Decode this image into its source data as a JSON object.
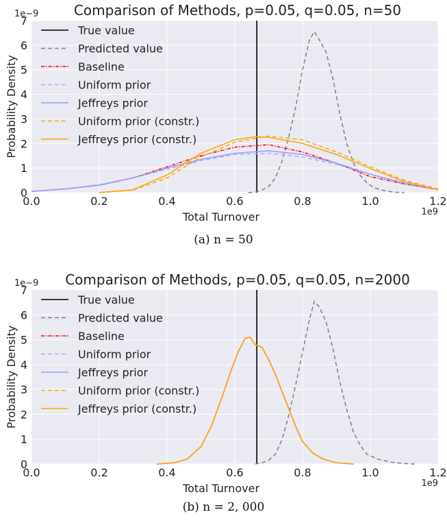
{
  "chart_data": [
    {
      "type": "line",
      "title": "Comparison of Methods, p=0.05, q=0.05, n=50",
      "xlabel": "Total Turnover",
      "ylabel": "Probability Density",
      "x_scale_label": "1e9",
      "y_scale_label": "1e−9",
      "xlim": [
        0.0,
        1.2
      ],
      "ylim": [
        0,
        7
      ],
      "xticks": [
        "0.0",
        "0.2",
        "0.4",
        "0.6",
        "0.8",
        "1.0",
        "1.2"
      ],
      "yticks": [
        "0",
        "1",
        "2",
        "3",
        "4",
        "5",
        "6",
        "7"
      ],
      "grid": true,
      "background": "#eaeaf2",
      "legend_position": "top-left",
      "caption": "(a) n = 50",
      "true_value": 0.665,
      "series": [
        {
          "name": "True value",
          "style": "solid",
          "color": "#000000",
          "vertical_at": 0.665,
          "points": []
        },
        {
          "name": "Predicted value",
          "style": "dashed",
          "color": "#808080",
          "points": [
            [
              0.64,
              0.0
            ],
            [
              0.66,
              0.02
            ],
            [
              0.68,
              0.1
            ],
            [
              0.7,
              0.25
            ],
            [
              0.72,
              0.6
            ],
            [
              0.74,
              1.3
            ],
            [
              0.76,
              2.3
            ],
            [
              0.78,
              3.5
            ],
            [
              0.8,
              5.0
            ],
            [
              0.82,
              6.2
            ],
            [
              0.835,
              6.55
            ],
            [
              0.85,
              6.2
            ],
            [
              0.87,
              5.7
            ],
            [
              0.89,
              4.6
            ],
            [
              0.91,
              3.2
            ],
            [
              0.93,
              2.0
            ],
            [
              0.95,
              1.2
            ],
            [
              0.97,
              0.7
            ],
            [
              0.99,
              0.4
            ],
            [
              1.01,
              0.2
            ],
            [
              1.04,
              0.08
            ],
            [
              1.07,
              0.02
            ],
            [
              1.1,
              0.0
            ]
          ]
        },
        {
          "name": "Baseline",
          "style": "dashdot",
          "color": "#ff0000",
          "points": [
            [
              0.0,
              0.05
            ],
            [
              0.1,
              0.15
            ],
            [
              0.2,
              0.3
            ],
            [
              0.3,
              0.6
            ],
            [
              0.4,
              1.05
            ],
            [
              0.5,
              1.5
            ],
            [
              0.6,
              1.85
            ],
            [
              0.7,
              1.95
            ],
            [
              0.8,
              1.65
            ],
            [
              0.9,
              1.2
            ],
            [
              1.0,
              0.65
            ],
            [
              1.1,
              0.35
            ],
            [
              1.2,
              0.12
            ]
          ]
        },
        {
          "name": "Uniform prior",
          "style": "dashed",
          "color": "#aaaaff",
          "points": [
            [
              0.0,
              0.05
            ],
            [
              0.1,
              0.15
            ],
            [
              0.2,
              0.32
            ],
            [
              0.3,
              0.6
            ],
            [
              0.4,
              0.95
            ],
            [
              0.5,
              1.3
            ],
            [
              0.6,
              1.55
            ],
            [
              0.7,
              1.6
            ],
            [
              0.8,
              1.45
            ],
            [
              0.9,
              1.15
            ],
            [
              1.0,
              0.75
            ],
            [
              1.1,
              0.4
            ],
            [
              1.2,
              0.15
            ]
          ]
        },
        {
          "name": "Jeffreys prior",
          "style": "solid",
          "color": "#9999ff",
          "points": [
            [
              0.0,
              0.05
            ],
            [
              0.1,
              0.15
            ],
            [
              0.2,
              0.3
            ],
            [
              0.3,
              0.6
            ],
            [
              0.4,
              1.0
            ],
            [
              0.5,
              1.35
            ],
            [
              0.6,
              1.6
            ],
            [
              0.7,
              1.7
            ],
            [
              0.8,
              1.55
            ],
            [
              0.9,
              1.2
            ],
            [
              1.0,
              0.75
            ],
            [
              1.1,
              0.38
            ],
            [
              1.2,
              0.12
            ]
          ]
        },
        {
          "name": "Uniform prior (constr.)",
          "style": "dashed",
          "color": "#ffa500",
          "points": [
            [
              0.2,
              0.0
            ],
            [
              0.3,
              0.1
            ],
            [
              0.4,
              0.6
            ],
            [
              0.5,
              1.45
            ],
            [
              0.6,
              2.05
            ],
            [
              0.7,
              2.3
            ],
            [
              0.8,
              2.15
            ],
            [
              0.9,
              1.65
            ],
            [
              1.0,
              1.05
            ],
            [
              1.1,
              0.5
            ],
            [
              1.2,
              0.15
            ]
          ]
        },
        {
          "name": "Jeffreys prior (constr.)",
          "style": "solid",
          "color": "#ffa500",
          "points": [
            [
              0.2,
              0.0
            ],
            [
              0.3,
              0.12
            ],
            [
              0.4,
              0.72
            ],
            [
              0.5,
              1.6
            ],
            [
              0.6,
              2.15
            ],
            [
              0.66,
              2.27
            ],
            [
              0.7,
              2.25
            ],
            [
              0.8,
              2.0
            ],
            [
              0.9,
              1.55
            ],
            [
              1.0,
              0.98
            ],
            [
              1.1,
              0.45
            ],
            [
              1.2,
              0.12
            ]
          ]
        }
      ]
    },
    {
      "type": "line",
      "title": "Comparison of Methods, p=0.05, q=0.05, n=2000",
      "xlabel": "Total Turnover",
      "ylabel": "Probability Density",
      "x_scale_label": "1e9",
      "y_scale_label": "1e−9",
      "xlim": [
        0.0,
        1.2
      ],
      "ylim": [
        0,
        7
      ],
      "xticks": [
        "0.0",
        "0.2",
        "0.4",
        "0.6",
        "0.8",
        "1.0",
        "1.2"
      ],
      "yticks": [
        "0",
        "1",
        "2",
        "3",
        "4",
        "5",
        "6",
        "7"
      ],
      "grid": true,
      "background": "#eaeaf2",
      "legend_position": "top-left",
      "caption": "(b) n = 2, 000",
      "true_value": 0.665,
      "series": [
        {
          "name": "True value",
          "style": "solid",
          "color": "#000000",
          "vertical_at": 0.665,
          "points": []
        },
        {
          "name": "Predicted value",
          "style": "dashed",
          "color": "#808080",
          "points": [
            [
              0.66,
              0.0
            ],
            [
              0.68,
              0.05
            ],
            [
              0.7,
              0.15
            ],
            [
              0.72,
              0.4
            ],
            [
              0.74,
              1.0
            ],
            [
              0.76,
              2.0
            ],
            [
              0.78,
              3.2
            ],
            [
              0.8,
              4.5
            ],
            [
              0.82,
              5.8
            ],
            [
              0.835,
              6.55
            ],
            [
              0.85,
              6.3
            ],
            [
              0.87,
              5.7
            ],
            [
              0.89,
              4.6
            ],
            [
              0.91,
              3.3
            ],
            [
              0.93,
              2.2
            ],
            [
              0.95,
              1.3
            ],
            [
              0.97,
              0.75
            ],
            [
              0.99,
              0.4
            ],
            [
              1.02,
              0.2
            ],
            [
              1.06,
              0.08
            ],
            [
              1.1,
              0.02
            ],
            [
              1.13,
              0.0
            ]
          ]
        },
        {
          "name": "Baseline",
          "style": "dashdot",
          "color": "#ff0000",
          "points": [
            [
              0.37,
              0.0
            ],
            [
              0.42,
              0.05
            ],
            [
              0.46,
              0.2
            ],
            [
              0.5,
              0.7
            ],
            [
              0.53,
              1.5
            ],
            [
              0.56,
              2.6
            ],
            [
              0.59,
              3.8
            ],
            [
              0.61,
              4.5
            ],
            [
              0.63,
              5.05
            ],
            [
              0.645,
              5.1
            ],
            [
              0.66,
              4.8
            ],
            [
              0.68,
              4.7
            ],
            [
              0.7,
              4.2
            ],
            [
              0.72,
              3.6
            ],
            [
              0.74,
              2.9
            ],
            [
              0.76,
              2.2
            ],
            [
              0.78,
              1.5
            ],
            [
              0.8,
              0.9
            ],
            [
              0.83,
              0.45
            ],
            [
              0.86,
              0.2
            ],
            [
              0.9,
              0.05
            ],
            [
              0.95,
              0.0
            ]
          ]
        },
        {
          "name": "Uniform prior",
          "style": "dashed",
          "color": "#aaaaff",
          "points": [
            [
              0.37,
              0.0
            ],
            [
              0.42,
              0.05
            ],
            [
              0.46,
              0.2
            ],
            [
              0.5,
              0.7
            ],
            [
              0.53,
              1.5
            ],
            [
              0.56,
              2.6
            ],
            [
              0.59,
              3.8
            ],
            [
              0.61,
              4.5
            ],
            [
              0.63,
              5.05
            ],
            [
              0.645,
              5.1
            ],
            [
              0.66,
              4.8
            ],
            [
              0.68,
              4.7
            ],
            [
              0.7,
              4.2
            ],
            [
              0.72,
              3.6
            ],
            [
              0.74,
              2.9
            ],
            [
              0.76,
              2.2
            ],
            [
              0.78,
              1.5
            ],
            [
              0.8,
              0.9
            ],
            [
              0.83,
              0.45
            ],
            [
              0.86,
              0.2
            ],
            [
              0.9,
              0.05
            ],
            [
              0.95,
              0.0
            ]
          ]
        },
        {
          "name": "Jeffreys prior",
          "style": "solid",
          "color": "#9999ff",
          "points": [
            [
              0.37,
              0.0
            ],
            [
              0.42,
              0.05
            ],
            [
              0.46,
              0.2
            ],
            [
              0.5,
              0.7
            ],
            [
              0.53,
              1.5
            ],
            [
              0.56,
              2.6
            ],
            [
              0.59,
              3.8
            ],
            [
              0.61,
              4.5
            ],
            [
              0.63,
              5.05
            ],
            [
              0.645,
              5.1
            ],
            [
              0.66,
              4.8
            ],
            [
              0.68,
              4.7
            ],
            [
              0.7,
              4.2
            ],
            [
              0.72,
              3.6
            ],
            [
              0.74,
              2.9
            ],
            [
              0.76,
              2.2
            ],
            [
              0.78,
              1.5
            ],
            [
              0.8,
              0.9
            ],
            [
              0.83,
              0.45
            ],
            [
              0.86,
              0.2
            ],
            [
              0.9,
              0.05
            ],
            [
              0.95,
              0.0
            ]
          ]
        },
        {
          "name": "Uniform prior (constr.)",
          "style": "dashed",
          "color": "#ffa500",
          "points": [
            [
              0.37,
              0.0
            ],
            [
              0.42,
              0.05
            ],
            [
              0.46,
              0.2
            ],
            [
              0.5,
              0.7
            ],
            [
              0.53,
              1.5
            ],
            [
              0.56,
              2.6
            ],
            [
              0.59,
              3.8
            ],
            [
              0.61,
              4.5
            ],
            [
              0.63,
              5.05
            ],
            [
              0.645,
              5.1
            ],
            [
              0.66,
              4.8
            ],
            [
              0.68,
              4.7
            ],
            [
              0.7,
              4.2
            ],
            [
              0.72,
              3.6
            ],
            [
              0.74,
              2.9
            ],
            [
              0.76,
              2.2
            ],
            [
              0.78,
              1.5
            ],
            [
              0.8,
              0.9
            ],
            [
              0.83,
              0.45
            ],
            [
              0.86,
              0.2
            ],
            [
              0.9,
              0.05
            ],
            [
              0.95,
              0.0
            ]
          ]
        },
        {
          "name": "Jeffreys prior (constr.)",
          "style": "solid",
          "color": "#ffa500",
          "points": [
            [
              0.37,
              0.0
            ],
            [
              0.42,
              0.05
            ],
            [
              0.46,
              0.2
            ],
            [
              0.5,
              0.7
            ],
            [
              0.53,
              1.5
            ],
            [
              0.56,
              2.6
            ],
            [
              0.59,
              3.8
            ],
            [
              0.61,
              4.5
            ],
            [
              0.63,
              5.05
            ],
            [
              0.645,
              5.1
            ],
            [
              0.66,
              4.8
            ],
            [
              0.68,
              4.7
            ],
            [
              0.7,
              4.2
            ],
            [
              0.72,
              3.6
            ],
            [
              0.74,
              2.9
            ],
            [
              0.76,
              2.2
            ],
            [
              0.78,
              1.5
            ],
            [
              0.8,
              0.9
            ],
            [
              0.83,
              0.45
            ],
            [
              0.86,
              0.2
            ],
            [
              0.9,
              0.05
            ],
            [
              0.95,
              0.0
            ]
          ]
        }
      ]
    }
  ]
}
